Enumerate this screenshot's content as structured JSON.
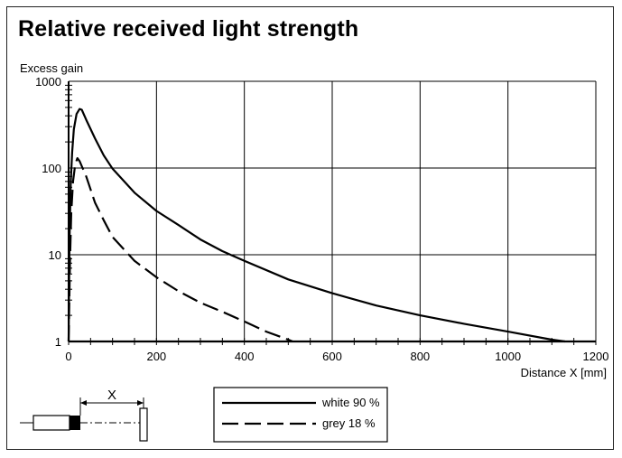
{
  "chart_data": {
    "type": "line",
    "title": "Relative received light strength",
    "ylabel": "Excess gain",
    "xlabel": "Distance X [mm]",
    "xlim": [
      0,
      1200
    ],
    "ylim": [
      1,
      1000
    ],
    "yscale": "log",
    "x_ticks": [
      "0",
      "200",
      "400",
      "600",
      "800",
      "1000",
      "1200"
    ],
    "y_ticks": [
      "1",
      "10",
      "100",
      "1000"
    ],
    "grid": true,
    "legend_position": "bottom-center",
    "series": [
      {
        "name": "white 90 %",
        "style": "solid",
        "color": "#000000",
        "x": [
          0,
          2,
          5,
          8,
          12,
          18,
          25,
          30,
          40,
          60,
          80,
          100,
          150,
          200,
          250,
          300,
          350,
          400,
          500,
          600,
          700,
          800,
          900,
          1000,
          1100,
          1130
        ],
        "y": [
          1,
          15,
          70,
          150,
          280,
          420,
          480,
          470,
          360,
          220,
          140,
          98,
          52,
          32,
          22,
          15,
          11,
          8.5,
          5.2,
          3.6,
          2.6,
          2.0,
          1.6,
          1.3,
          1.05,
          1.0
        ]
      },
      {
        "name": "grey 18 %",
        "style": "dashed",
        "color": "#000000",
        "x": [
          0,
          3,
          6,
          10,
          15,
          20,
          25,
          30,
          40,
          60,
          80,
          100,
          150,
          200,
          250,
          300,
          350,
          400,
          450,
          500,
          510
        ],
        "y": [
          1,
          8,
          30,
          70,
          110,
          130,
          120,
          105,
          80,
          40,
          25,
          16,
          8.5,
          5.5,
          3.8,
          2.8,
          2.2,
          1.7,
          1.3,
          1.05,
          1.0
        ]
      }
    ]
  },
  "diagram": {
    "distance_label": "X"
  }
}
